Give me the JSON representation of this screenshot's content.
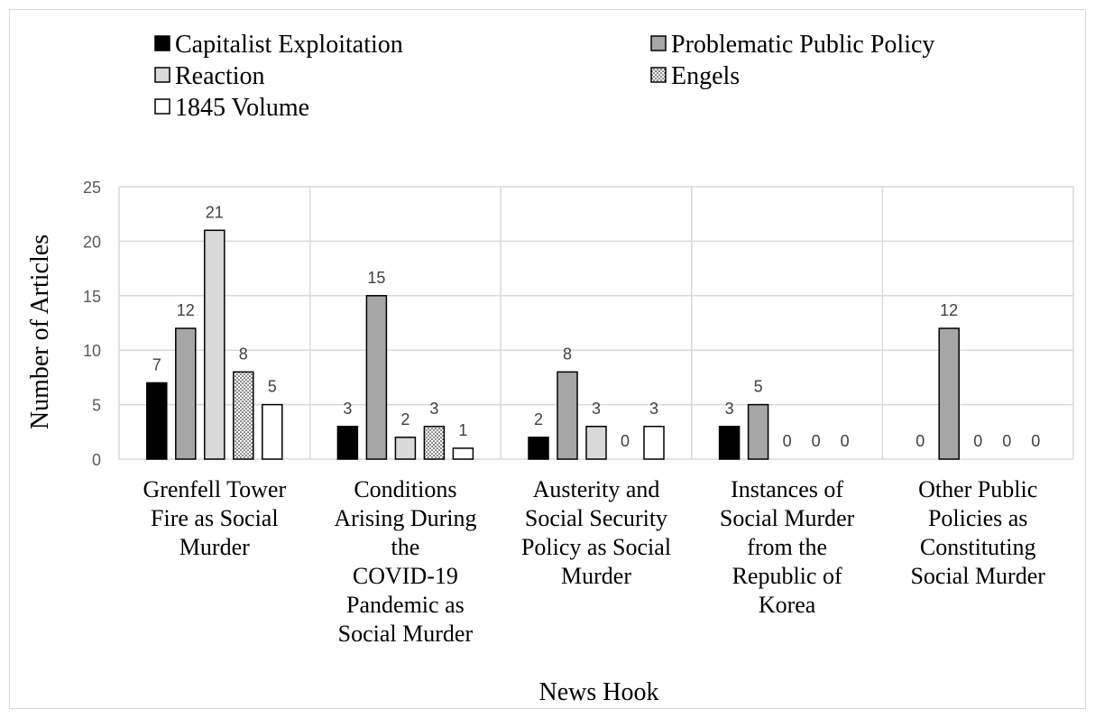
{
  "chart_data": {
    "type": "bar",
    "title": "",
    "xlabel": "News Hook",
    "ylabel": "Number of Articles",
    "ylim": [
      0,
      25
    ],
    "yticks": [
      "0",
      "5",
      "10",
      "15",
      "20",
      "25"
    ],
    "grid": true,
    "legend_position": "top",
    "categories": [
      [
        "Grenfell Tower",
        "Fire as Social",
        "Murder"
      ],
      [
        "Conditions",
        "Arising During",
        "the",
        "COVID-19",
        "Pandemic as",
        "Social Murder"
      ],
      [
        "Austerity and",
        "Social Security",
        "Policy as Social",
        "Murder"
      ],
      [
        "Instances of",
        "Social Murder",
        "from the",
        "Republic of",
        "Korea"
      ],
      [
        "Other Public",
        "Policies as",
        "Constituting",
        "Social Murder"
      ]
    ],
    "series": [
      {
        "name": "Capitalist Exploitation",
        "fill": "#000000",
        "pattern": "solid",
        "values": [
          7,
          3,
          2,
          3,
          0
        ]
      },
      {
        "name": "Problematic Public Policy",
        "fill": "#a6a6a6",
        "pattern": "solid",
        "values": [
          12,
          15,
          8,
          5,
          12
        ]
      },
      {
        "name": "Reaction",
        "fill": "#d9d9d9",
        "pattern": "solid",
        "values": [
          21,
          2,
          3,
          0,
          0
        ]
      },
      {
        "name": "Engels",
        "fill": "#ffffff",
        "pattern": "dots",
        "values": [
          8,
          3,
          0,
          0,
          0
        ]
      },
      {
        "name": "1845 Volume",
        "fill": "#ffffff",
        "pattern": "solid",
        "values": [
          5,
          1,
          3,
          0,
          0
        ]
      }
    ]
  }
}
